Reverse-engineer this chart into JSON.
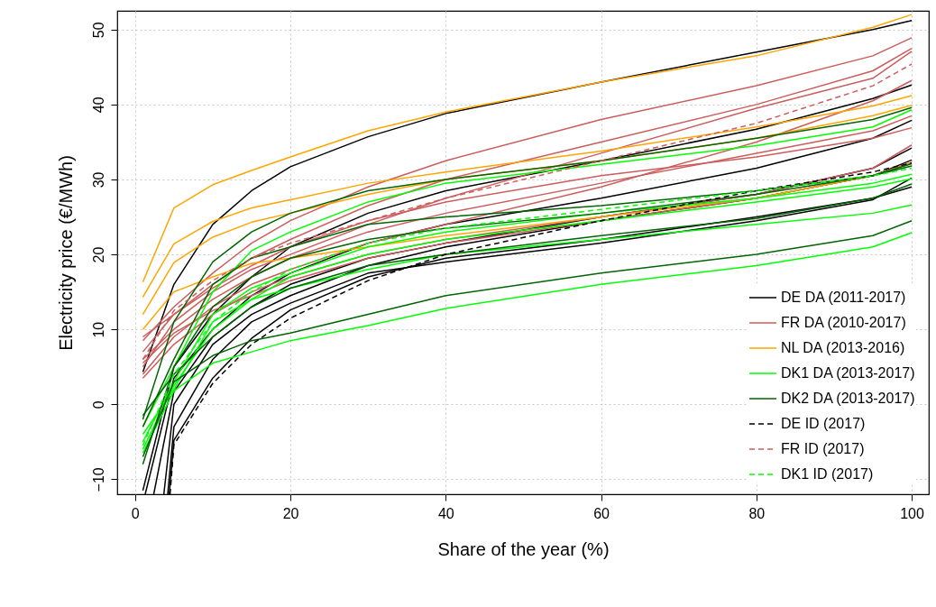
{
  "chart_data": {
    "type": "line",
    "xlabel": "Share of the year (%)",
    "ylabel": "Electricity price (€/MWh)",
    "x": [
      1,
      5,
      10,
      15,
      20,
      30,
      40,
      60,
      80,
      95,
      100
    ],
    "xlim": [
      -2.3,
      102.2
    ],
    "xticks": [
      0,
      20,
      40,
      60,
      80,
      100
    ],
    "ylim": [
      -12,
      52.5
    ],
    "yticks": [
      -10,
      0,
      10,
      20,
      30,
      40,
      50
    ],
    "grid": true,
    "legend": "bottom right",
    "line_style": "solid",
    "marker": "none",
    "series": [
      {
        "name": "DE DA (2011-2017)",
        "color": "#000000",
        "values": [
          4.3,
          16,
          24,
          28.5,
          31.7,
          35.7,
          38.8,
          43,
          47,
          50,
          51.2
        ]
      },
      {
        "color": "#000000",
        "values": [
          -11.5,
          5,
          12,
          17,
          21,
          25.5,
          28.5,
          32.5,
          36.7,
          40.8,
          42.6
        ]
      },
      {
        "color": "#000000",
        "x": [
          1.3,
          5,
          10,
          15,
          20,
          30,
          40,
          60,
          80,
          95,
          100
        ],
        "values": [
          -12,
          3.5,
          10,
          14.5,
          17.5,
          21.5,
          24,
          27.5,
          31.5,
          35.5,
          37.9
        ]
      },
      {
        "color": "#000000",
        "x": [
          2.4,
          5,
          10,
          15,
          20,
          30,
          40,
          60,
          80,
          95,
          100
        ],
        "values": [
          -12,
          1.7,
          9,
          13,
          16,
          19.5,
          21.5,
          25,
          28,
          31.5,
          34.2
        ]
      },
      {
        "color": "#000000",
        "x": [
          3.7,
          5,
          10,
          15,
          20,
          30,
          40,
          60,
          80,
          95,
          100
        ],
        "values": [
          -12,
          0,
          8,
          12,
          14.5,
          18.5,
          21,
          24.5,
          27.5,
          30.5,
          32.6
        ]
      },
      {
        "color": "#000000",
        "x": [
          4.4,
          5,
          10,
          15,
          20,
          30,
          40,
          60,
          80,
          95,
          100
        ],
        "values": [
          -12,
          -4.8,
          3.5,
          8.8,
          12.6,
          17,
          19.5,
          22,
          25,
          27.5,
          29
        ]
      },
      {
        "color": "#000000",
        "x": [
          4.2,
          5,
          10,
          15,
          20,
          30,
          40,
          60,
          80,
          95,
          100
        ],
        "values": [
          -12,
          -3,
          6,
          11,
          13.5,
          17.5,
          19,
          21.5,
          24.5,
          27.3,
          30.2
        ]
      },
      {
        "name": "FR DA (2010-2017)",
        "color": "#cd5c5c",
        "values": [
          8.5,
          13,
          17.5,
          21.5,
          24.5,
          29,
          32.5,
          38,
          42.5,
          46.5,
          48.9
        ]
      },
      {
        "color": "#cd5c5c",
        "values": [
          7,
          12,
          16,
          19.5,
          22,
          26.5,
          30,
          35,
          40,
          44.5,
          47.5
        ]
      },
      {
        "color": "#cd5c5c",
        "values": [
          5,
          11,
          15,
          18,
          20,
          24,
          27.5,
          33.5,
          39.5,
          43.5,
          47.1
        ]
      },
      {
        "color": "#cd5c5c",
        "values": [
          4,
          9,
          13,
          16,
          18,
          21.5,
          24,
          29,
          35,
          40.5,
          43.2
        ]
      },
      {
        "color": "#cd5c5c",
        "values": [
          6,
          10,
          14,
          17,
          19.5,
          23,
          25.5,
          29.5,
          33.5,
          36.5,
          38.5
        ]
      },
      {
        "color": "#cd5c5c",
        "values": [
          9,
          12,
          15.5,
          18.5,
          21,
          24.5,
          27,
          30.5,
          33,
          35.5,
          36.9
        ]
      },
      {
        "color": "#cd5c5c",
        "values": [
          3.5,
          8,
          12,
          15,
          17,
          20,
          22,
          25,
          28,
          31.5,
          34.6
        ]
      },
      {
        "color": "#cd5c5c",
        "values": [
          5.5,
          9.5,
          12.5,
          14.5,
          16.5,
          19.5,
          21.5,
          24.5,
          27.5,
          30.5,
          32.3
        ]
      },
      {
        "name": "NL DA (2013-2016)",
        "color": "#ffa500",
        "values": [
          16.3,
          26.2,
          29.3,
          31.2,
          33,
          36.5,
          39,
          43,
          46.5,
          50.3,
          52
        ]
      },
      {
        "color": "#ffa500",
        "values": [
          14.3,
          21.4,
          24.4,
          26.2,
          27.3,
          29.5,
          31,
          33.8,
          37,
          39.8,
          41.2
        ]
      },
      {
        "color": "#ffa500",
        "values": [
          12,
          18.9,
          22.3,
          24.3,
          25.5,
          28,
          30,
          32.5,
          35.5,
          38.5,
          39.9
        ]
      },
      {
        "color": "#ffa500",
        "values": [
          10,
          15,
          17,
          18.8,
          19.5,
          21,
          22.5,
          25,
          27.5,
          30.5,
          32.2
        ]
      },
      {
        "name": "DK1 DA (2013-2017)",
        "color": "#00ff00",
        "values": [
          -3,
          5,
          15,
          20.5,
          23,
          27,
          29.5,
          32,
          34.5,
          37,
          39.3
        ]
      },
      {
        "color": "#00ff00",
        "values": [
          -5,
          3,
          12,
          15.5,
          17.5,
          21,
          23,
          25.5,
          27.5,
          29.5,
          30.7
        ]
      },
      {
        "color": "#00ff00",
        "values": [
          -6,
          2.5,
          10,
          14,
          17,
          20,
          22,
          24.5,
          27,
          29,
          30.1
        ]
      },
      {
        "color": "#00ff00",
        "values": [
          -4,
          2,
          11,
          14,
          15.5,
          18,
          20,
          22,
          24,
          25.5,
          26.6
        ]
      },
      {
        "color": "#00ff00",
        "values": [
          -6.5,
          1.8,
          5.5,
          7,
          8.5,
          10.5,
          12.8,
          16,
          18.5,
          21,
          22.9
        ]
      },
      {
        "name": "DK2 DA (2013-2017)",
        "color": "#006400",
        "values": [
          -2,
          11,
          19,
          23,
          25.5,
          28.5,
          30,
          32.5,
          35.5,
          38,
          39.6
        ]
      },
      {
        "color": "#006400",
        "values": [
          -3,
          6,
          16,
          19.5,
          21,
          24,
          25,
          26.5,
          28.5,
          30.5,
          32.1
        ]
      },
      {
        "color": "#006400",
        "values": [
          -8,
          5,
          13,
          17,
          19.5,
          22,
          23.5,
          25.5,
          28,
          30.5,
          31.8
        ]
      },
      {
        "color": "#006400",
        "values": [
          -1.5,
          4,
          9,
          13,
          15.5,
          18.5,
          20,
          22.5,
          24.8,
          27.5,
          29.4
        ]
      },
      {
        "color": "#006400",
        "values": [
          -7,
          3,
          6.5,
          8.5,
          9.5,
          12,
          14.5,
          17.5,
          20,
          22.5,
          24.5
        ]
      },
      {
        "name": "DE ID (2017)",
        "color": "#000000",
        "line_style": "dashed",
        "x": [
          4.5,
          5,
          10,
          15,
          20,
          30,
          40,
          60,
          80,
          95,
          100
        ],
        "values": [
          -12,
          -5.4,
          2.8,
          8,
          11.5,
          16.5,
          20,
          24.5,
          28.5,
          31,
          32.2
        ]
      },
      {
        "name": "FR ID (2017)",
        "color": "#cd5c5c",
        "line_style": "dashed",
        "values": [
          6,
          12.5,
          16.5,
          19.5,
          21.5,
          24.5,
          27.5,
          32.5,
          37.5,
          42.5,
          45.4
        ]
      },
      {
        "name": "DK1 ID (2017)",
        "color": "#00ff00",
        "line_style": "dashed",
        "values": [
          -5.5,
          4,
          11,
          15,
          18,
          21.5,
          23.5,
          26,
          28.5,
          30.5,
          31.5
        ]
      }
    ]
  }
}
